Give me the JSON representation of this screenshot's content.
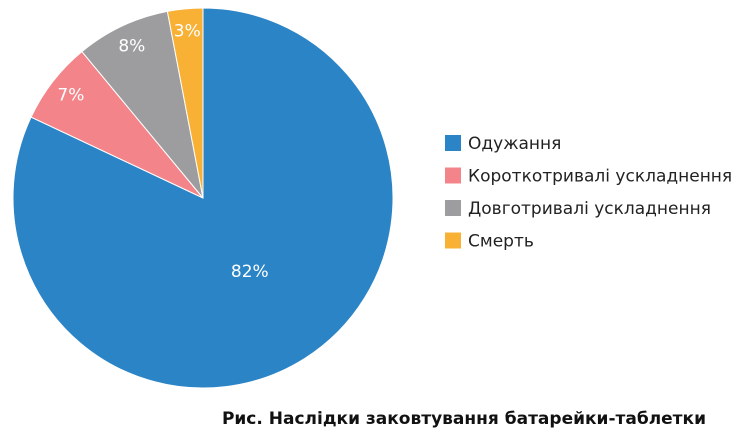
{
  "chart_data": {
    "type": "pie",
    "title": "Рис. Наслідки заковтування батарейки-таблетки",
    "categories": [
      "Одужання",
      "Короткотривалі ускладнення",
      "Довготривалі ускладнення",
      "Смерть"
    ],
    "values": [
      82,
      7,
      8,
      3
    ],
    "value_labels": [
      "82%",
      "7%",
      "8%",
      "3%"
    ],
    "colors": [
      "#2b84c6",
      "#f3858a",
      "#9d9d9f",
      "#f8b134"
    ],
    "legend": "right"
  }
}
